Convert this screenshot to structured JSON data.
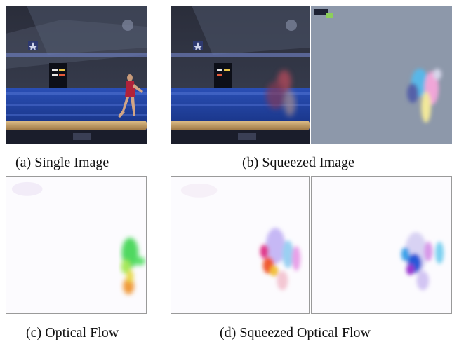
{
  "captions": {
    "a": "(a) Single Image",
    "b": "(b) Squeezed Image",
    "c": "(c) Optical Flow",
    "d": "(d) Squeezed Optical Flow"
  },
  "colors": {
    "arena_blue": "#1f3d9e",
    "arena_dark": "#1a1d2b",
    "beam": "#c8a26a",
    "flow_gray": "#8d98aa",
    "flow_white": "#fcfbfe"
  }
}
